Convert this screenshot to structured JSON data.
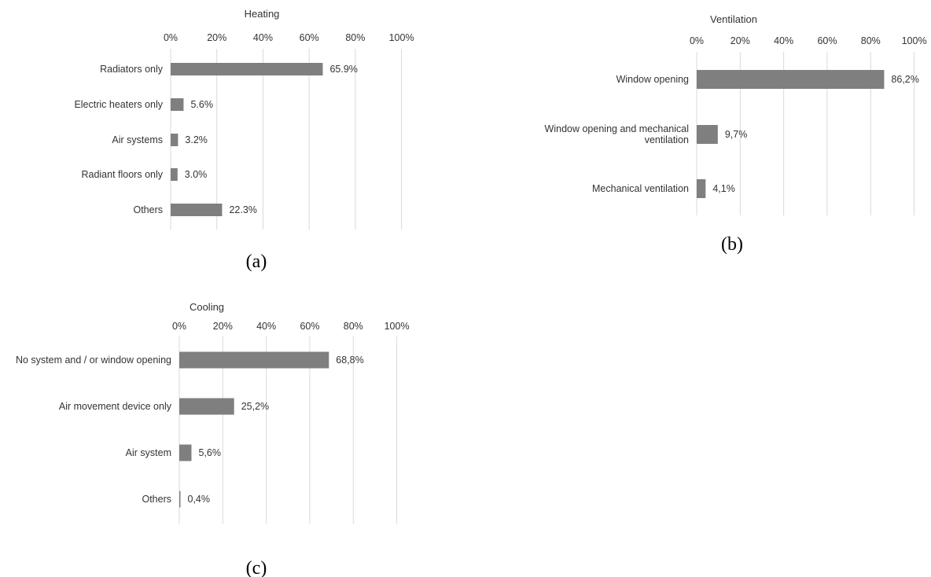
{
  "captions": [
    "(a)",
    "(b)",
    "(c)"
  ],
  "chart_data": [
    {
      "type": "bar",
      "orientation": "horizontal",
      "title": "Heating",
      "categories": [
        "Radiators only",
        "Electric heaters only",
        "Air systems",
        "Radiant floors only",
        "Others"
      ],
      "values": [
        65.9,
        5.6,
        3.2,
        3.0,
        22.3
      ],
      "value_labels": [
        "65.9%",
        "5.6%",
        "3.2%",
        "3.0%",
        "22.3%"
      ],
      "xlim": [
        0,
        100
      ],
      "ticks": [
        0,
        20,
        40,
        60,
        80,
        100
      ],
      "tick_labels": [
        "0%",
        "20%",
        "40%",
        "60%",
        "80%",
        "100%"
      ],
      "axis_position": "top",
      "grid": true,
      "bar_color": "#7f7f7f"
    },
    {
      "type": "bar",
      "orientation": "horizontal",
      "title": "Ventilation",
      "categories": [
        [
          "Window opening"
        ],
        [
          "Window opening and mechanical",
          "ventilation"
        ],
        [
          "Mechanical ventilation"
        ]
      ],
      "values": [
        86.2,
        9.7,
        4.1
      ],
      "value_labels": [
        "86,2%",
        "9,7%",
        "4,1%"
      ],
      "xlim": [
        0,
        100
      ],
      "ticks": [
        0,
        20,
        40,
        60,
        80,
        100
      ],
      "tick_labels": [
        "0%",
        "20%",
        "40%",
        "60%",
        "80%",
        "100%"
      ],
      "axis_position": "top",
      "grid": true,
      "bar_color": "#7f7f7f"
    },
    {
      "type": "bar",
      "orientation": "horizontal",
      "title": "Cooling",
      "categories": [
        "No system and / or window opening",
        "Air movement device only",
        "Air system",
        "Others"
      ],
      "values": [
        68.8,
        25.2,
        5.6,
        0.4
      ],
      "value_labels": [
        "68,8%",
        "25,2%",
        "5,6%",
        "0,4%"
      ],
      "xlim": [
        0,
        100
      ],
      "ticks": [
        0,
        20,
        40,
        60,
        80,
        100
      ],
      "tick_labels": [
        "0%",
        "20%",
        "40%",
        "60%",
        "80%",
        "100%"
      ],
      "axis_position": "top",
      "grid": true,
      "bar_color": "#7f7f7f"
    }
  ]
}
